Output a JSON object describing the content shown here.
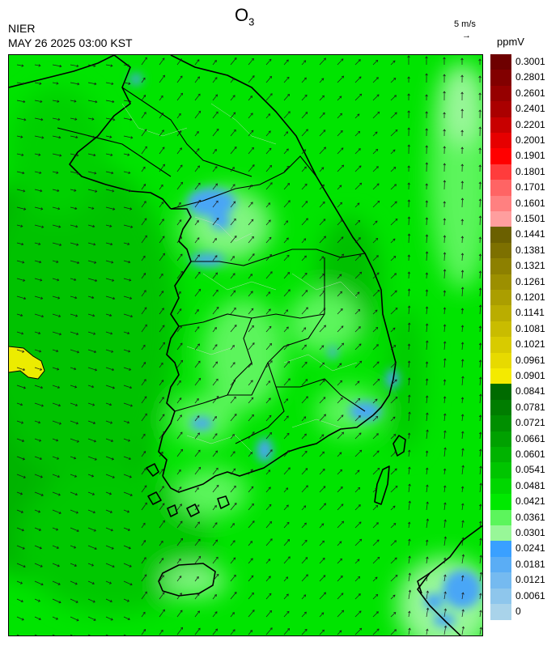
{
  "header": {
    "title_main": "O",
    "title_sub": "3",
    "organization": "NIER",
    "timestamp": "MAY 26 2025 03:00 KST"
  },
  "wind_reference": {
    "label": "5 m/s",
    "arrow": "→"
  },
  "legend": {
    "unit": "ppmV",
    "labels": [
      "0.3001",
      "0.2801",
      "0.2601",
      "0.2401",
      "0.2201",
      "0.2001",
      "0.1901",
      "0.1801",
      "0.1701",
      "0.1601",
      "0.1501",
      "0.1441",
      "0.1381",
      "0.1321",
      "0.1261",
      "0.1201",
      "0.1141",
      "0.1081",
      "0.1021",
      "0.0961",
      "0.0901",
      "0.0841",
      "0.0781",
      "0.0721",
      "0.0661",
      "0.0601",
      "0.0541",
      "0.0481",
      "0.0421",
      "0.0361",
      "0.0301",
      "0.0241",
      "0.0181",
      "0.0121",
      "0.0061",
      "0"
    ],
    "colors": [
      "#6e0000",
      "#820000",
      "#960000",
      "#aa0000",
      "#c80000",
      "#e60000",
      "#ff0000",
      "#ff3c3c",
      "#ff6464",
      "#ff8080",
      "#ff9e9e",
      "#6b6000",
      "#7d7000",
      "#8d8000",
      "#9c8f00",
      "#ab9e00",
      "#baad00",
      "#c9bc00",
      "#d8cb00",
      "#e7da00",
      "#f4ea00",
      "#006b00",
      "#007d00",
      "#008f00",
      "#00a100",
      "#00b300",
      "#00c500",
      "#00d700",
      "#00e900",
      "#5cf55c",
      "#98f798",
      "#3aa0ff",
      "#5aadf5",
      "#75baf0",
      "#8ec6ec",
      "#a9d3ea"
    ]
  },
  "colors": {
    "background_dark": "#00b600",
    "background_mid": "#00d400",
    "background_light": "#00ef00",
    "pale_green": "#80f580",
    "blue_low": "#4aa6f6",
    "yellow_high": "#ecec00",
    "boundary": "#000000",
    "province_lines": "#cfcfcf"
  },
  "icons": {
    "wind_vectors": "arrow-field-icon"
  }
}
